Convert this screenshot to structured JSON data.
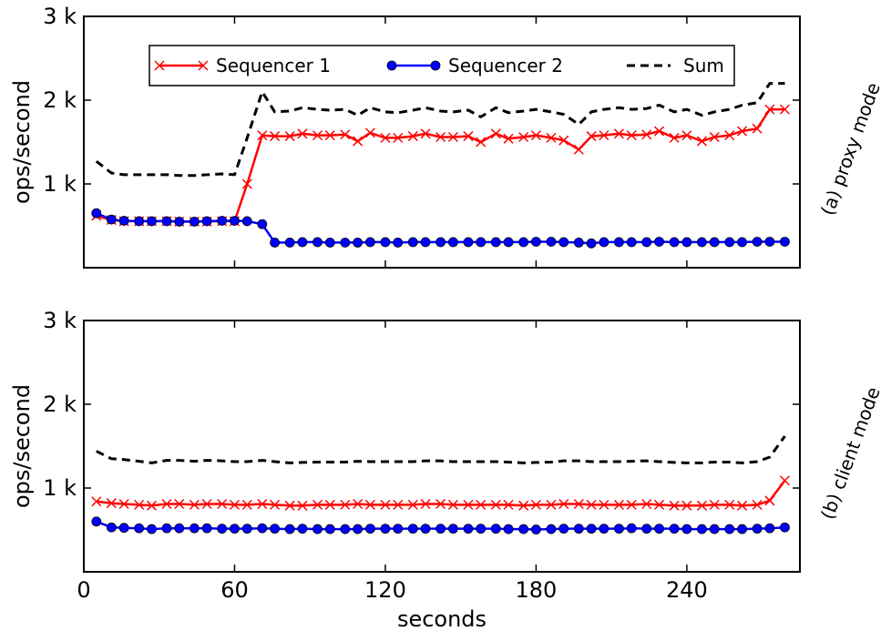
{
  "chart_data": [
    {
      "type": "line",
      "side_label": "(a) proxy mode",
      "ylabel": "ops/second",
      "xlabel": "",
      "xlim": [
        0,
        285
      ],
      "ylim": [
        0,
        3000
      ],
      "yticks": [
        1000,
        2000,
        3000
      ],
      "ytick_labels": [
        "1 k",
        "2 k",
        "3 k"
      ],
      "xticks": [
        0,
        60,
        120,
        180,
        240
      ],
      "xtick_labels": [
        "",
        "",
        "",
        "",
        ""
      ],
      "legend": {
        "position": "upper-center",
        "entries": [
          "Sequencer 1",
          "Sequencer 2",
          "Sum"
        ]
      },
      "x": [
        5,
        11,
        16,
        22,
        27,
        33,
        38,
        44,
        49,
        55,
        60,
        65,
        71,
        76,
        82,
        87,
        93,
        98,
        104,
        109,
        114,
        120,
        125,
        131,
        136,
        142,
        147,
        153,
        158,
        164,
        169,
        175,
        180,
        186,
        191,
        197,
        202,
        207,
        213,
        218,
        224,
        229,
        235,
        240,
        246,
        251,
        257,
        262,
        268,
        273,
        279
      ],
      "series": [
        {
          "name": "Sequencer 1",
          "color": "#ff0000",
          "marker": "x",
          "values": [
            620,
            570,
            555,
            555,
            555,
            555,
            550,
            550,
            550,
            555,
            555,
            1000,
            1580,
            1570,
            1570,
            1600,
            1580,
            1580,
            1590,
            1510,
            1610,
            1550,
            1550,
            1570,
            1600,
            1560,
            1560,
            1570,
            1500,
            1600,
            1540,
            1560,
            1580,
            1550,
            1520,
            1410,
            1570,
            1580,
            1600,
            1580,
            1590,
            1630,
            1550,
            1580,
            1510,
            1560,
            1580,
            1630,
            1660,
            1890,
            1890
          ]
        },
        {
          "name": "Sequencer 2",
          "color": "#0000ff",
          "marker": "o",
          "values": [
            650,
            575,
            560,
            555,
            555,
            555,
            550,
            550,
            555,
            560,
            560,
            555,
            520,
            300,
            300,
            305,
            305,
            300,
            300,
            300,
            305,
            305,
            300,
            305,
            305,
            305,
            305,
            305,
            305,
            305,
            305,
            305,
            310,
            310,
            305,
            300,
            290,
            305,
            305,
            305,
            305,
            310,
            305,
            305,
            305,
            305,
            305,
            305,
            310,
            310,
            310
          ]
        },
        {
          "name": "Sum",
          "color": "#000000",
          "dash": true,
          "values": [
            1270,
            1130,
            1110,
            1110,
            1110,
            1110,
            1100,
            1100,
            1110,
            1120,
            1110,
            1550,
            2100,
            1860,
            1870,
            1910,
            1890,
            1880,
            1890,
            1820,
            1910,
            1860,
            1850,
            1880,
            1910,
            1870,
            1860,
            1880,
            1800,
            1910,
            1850,
            1870,
            1890,
            1860,
            1830,
            1710,
            1860,
            1890,
            1910,
            1890,
            1900,
            1940,
            1860,
            1890,
            1820,
            1860,
            1890,
            1940,
            1970,
            2200,
            2200
          ]
        }
      ]
    },
    {
      "type": "line",
      "side_label": "(b) client mode",
      "ylabel": "ops/second",
      "xlabel": "seconds",
      "xlim": [
        0,
        285
      ],
      "ylim": [
        0,
        3000
      ],
      "yticks": [
        1000,
        2000,
        3000
      ],
      "ytick_labels": [
        "1 k",
        "2 k",
        "3 k"
      ],
      "xticks": [
        0,
        60,
        120,
        180,
        240
      ],
      "xtick_labels": [
        "0",
        "60",
        "120",
        "180",
        "240"
      ],
      "legend": null,
      "x": [
        5,
        11,
        16,
        22,
        27,
        33,
        38,
        44,
        49,
        55,
        60,
        65,
        71,
        76,
        82,
        87,
        93,
        98,
        104,
        109,
        114,
        120,
        125,
        131,
        136,
        142,
        147,
        153,
        158,
        164,
        169,
        175,
        180,
        186,
        191,
        197,
        202,
        207,
        213,
        218,
        224,
        229,
        235,
        240,
        246,
        251,
        257,
        262,
        268,
        273,
        279
      ],
      "series": [
        {
          "name": "Sequencer 1",
          "color": "#ff0000",
          "marker": "x",
          "values": [
            840,
            820,
            810,
            800,
            790,
            810,
            810,
            800,
            810,
            810,
            800,
            800,
            810,
            800,
            790,
            790,
            800,
            800,
            800,
            810,
            800,
            800,
            800,
            800,
            810,
            810,
            800,
            800,
            800,
            800,
            800,
            790,
            800,
            800,
            810,
            810,
            800,
            800,
            800,
            800,
            810,
            800,
            790,
            790,
            790,
            800,
            800,
            790,
            800,
            850,
            1090
          ]
        },
        {
          "name": "Sequencer 2",
          "color": "#0000ff",
          "marker": "o",
          "values": [
            600,
            530,
            525,
            520,
            510,
            520,
            520,
            520,
            520,
            515,
            515,
            515,
            520,
            515,
            510,
            515,
            510,
            510,
            510,
            510,
            515,
            515,
            515,
            515,
            515,
            515,
            515,
            515,
            515,
            515,
            510,
            510,
            505,
            510,
            515,
            515,
            515,
            515,
            515,
            520,
            515,
            515,
            515,
            510,
            510,
            510,
            510,
            510,
            515,
            520,
            530
          ]
        },
        {
          "name": "Sum",
          "color": "#000000",
          "dash": true,
          "values": [
            1440,
            1350,
            1340,
            1320,
            1300,
            1330,
            1330,
            1320,
            1330,
            1325,
            1315,
            1315,
            1330,
            1315,
            1300,
            1305,
            1310,
            1310,
            1310,
            1320,
            1315,
            1315,
            1315,
            1315,
            1325,
            1325,
            1315,
            1315,
            1315,
            1315,
            1310,
            1300,
            1305,
            1310,
            1325,
            1325,
            1315,
            1315,
            1315,
            1320,
            1325,
            1315,
            1305,
            1300,
            1300,
            1310,
            1310,
            1300,
            1315,
            1370,
            1620
          ]
        }
      ]
    }
  ]
}
